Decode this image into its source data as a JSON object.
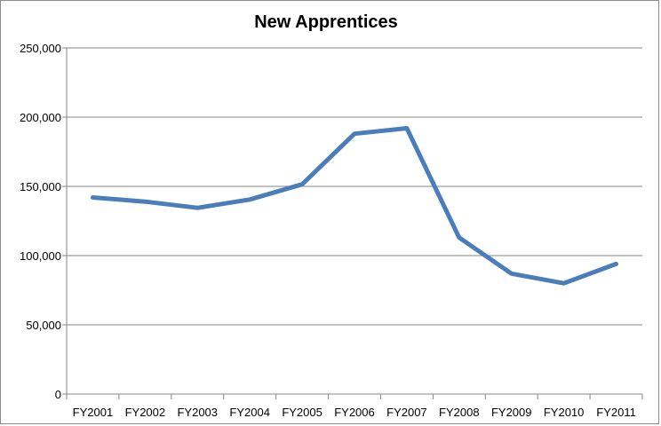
{
  "chart_data": {
    "type": "line",
    "title": "New Apprentices",
    "xlabel": "",
    "ylabel": "",
    "categories": [
      "FY2001",
      "FY2002",
      "FY2003",
      "FY2004",
      "FY2005",
      "FY2006",
      "FY2007",
      "FY2008",
      "FY2009",
      "FY2010",
      "FY2011"
    ],
    "series": [
      {
        "values": [
          142000,
          139000,
          134500,
          140500,
          151500,
          188000,
          192000,
          113000,
          87000,
          80000,
          94000
        ]
      }
    ],
    "ylim": [
      0,
      250000
    ],
    "yticks": [
      "0",
      "50,000",
      "100,000",
      "150,000",
      "200,000",
      "250,000"
    ],
    "grid": true,
    "legend": "none",
    "colors": {
      "line": "#4a7ebb",
      "grid": "#868686",
      "axis": "#868686"
    }
  }
}
